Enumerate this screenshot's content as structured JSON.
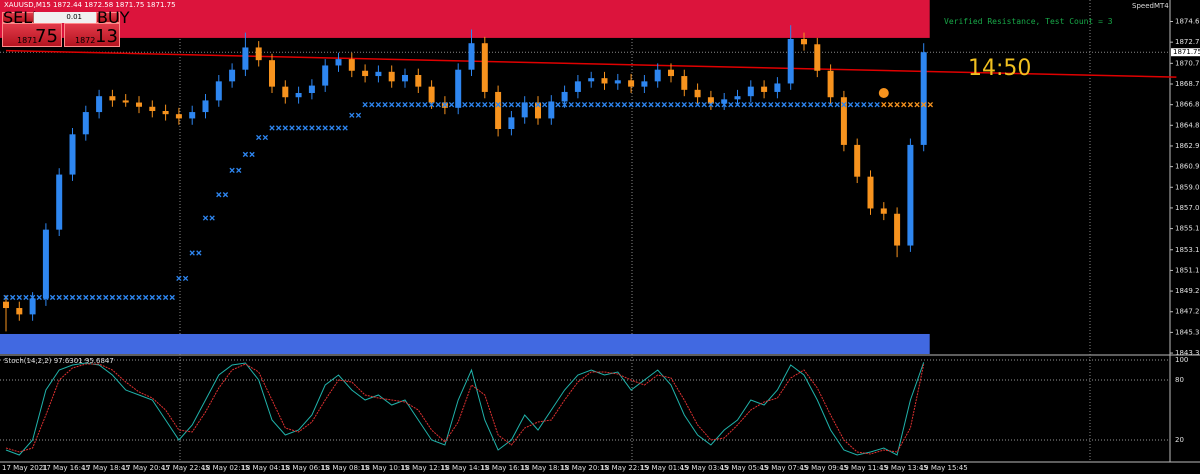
{
  "app": {
    "brand": "SpeedMT4"
  },
  "trade_panel": {
    "symbol_info": "XAUUSD,M15  1872.44 1872.58 1871.75 1871.75",
    "sell_label": "SELL",
    "buy_label": "BUY",
    "lot": "0.01",
    "sell_price_small": "1871",
    "sell_price_big": "75",
    "buy_price_small": "1872",
    "buy_price_big": "13"
  },
  "chart_data": [
    {
      "type": "candlestick",
      "annotations": [
        "Verified Resistance, Test Count = 3",
        "14:50"
      ],
      "categories": [
        "17 May 2021",
        null,
        null,
        "17 May 16:45",
        null,
        null,
        "17 May 18:45",
        null,
        null,
        "17 May 20:45",
        null,
        null,
        "17 May 22:45",
        null,
        null,
        "18 May 02:15",
        null,
        null,
        "18 May 04:15",
        null,
        null,
        "18 May 06:15",
        null,
        null,
        "18 May 08:15",
        null,
        null,
        "18 May 10:15",
        null,
        null,
        "18 May 12:15",
        null,
        null,
        "18 May 14:15",
        null,
        null,
        "18 May 16:15",
        null,
        null,
        "18 May 18:15",
        null,
        null,
        "18 May 20:15",
        null,
        null,
        "18 May 22:15",
        null,
        null,
        "19 May 01:45",
        null,
        null,
        "19 May 03:45",
        null,
        null,
        "19 May 05:45",
        null,
        null,
        "19 May 07:45",
        null,
        null,
        "19 May 09:45",
        null,
        null,
        "19 May 11:45",
        null,
        null,
        "19 May 13:45",
        null,
        null,
        "19 May 15:45"
      ],
      "open": [
        1848.2,
        1847.6,
        1847.0,
        1848.5,
        1855.0,
        1860.2,
        1864.0,
        1866.1,
        1867.6,
        1867.2,
        1867.0,
        1866.6,
        1866.2,
        1865.9,
        1865.5,
        1866.1,
        1867.2,
        1869.0,
        1870.1,
        1872.2,
        1871.0,
        1868.5,
        1867.5,
        1867.9,
        1868.6,
        1870.5,
        1871.1,
        1870.0,
        1869.5,
        1869.9,
        1869.0,
        1869.6,
        1868.5,
        1867.0,
        1866.5,
        1870.1,
        1872.6,
        1868.0,
        1864.5,
        1865.6,
        1867.0,
        1865.5,
        1867.1,
        1868.0,
        1869.0,
        1869.3,
        1868.8,
        1869.1,
        1868.5,
        1869.0,
        1870.1,
        1869.5,
        1868.2,
        1867.5,
        1866.9,
        1867.3,
        1867.6,
        1868.5,
        1868.0,
        1868.8,
        1873.0,
        1872.5,
        1870.0,
        1867.5,
        1863.0,
        1860.0,
        1857.0,
        1856.5,
        1853.5,
        1863.0
      ],
      "high": [
        1848.8,
        1848.2,
        1849.1,
        1855.6,
        1860.8,
        1864.6,
        1866.7,
        1868.2,
        1868.2,
        1867.8,
        1867.6,
        1867.2,
        1866.8,
        1866.5,
        1866.7,
        1867.8,
        1869.6,
        1870.7,
        1873.6,
        1872.8,
        1871.6,
        1869.1,
        1868.5,
        1869.2,
        1871.1,
        1871.7,
        1871.7,
        1870.6,
        1870.5,
        1870.5,
        1870.2,
        1870.2,
        1869.1,
        1867.6,
        1870.7,
        1873.9,
        1873.2,
        1868.6,
        1866.2,
        1867.6,
        1867.6,
        1867.7,
        1868.6,
        1869.6,
        1869.9,
        1869.9,
        1869.7,
        1869.7,
        1869.6,
        1870.7,
        1870.7,
        1870.1,
        1868.8,
        1868.1,
        1867.9,
        1868.2,
        1869.1,
        1869.1,
        1869.4,
        1874.3,
        1873.6,
        1873.1,
        1870.6,
        1868.1,
        1863.6,
        1860.6,
        1857.6,
        1857.1,
        1863.6,
        1872.6
      ],
      "low": [
        1845.4,
        1846.4,
        1846.4,
        1847.8,
        1854.4,
        1859.6,
        1863.4,
        1865.5,
        1866.6,
        1866.6,
        1866.0,
        1865.6,
        1865.3,
        1864.9,
        1864.9,
        1865.5,
        1866.6,
        1868.4,
        1869.5,
        1870.4,
        1867.9,
        1866.9,
        1866.9,
        1867.3,
        1868.0,
        1869.9,
        1869.4,
        1868.9,
        1868.9,
        1868.4,
        1868.4,
        1867.9,
        1866.4,
        1865.9,
        1865.9,
        1869.5,
        1867.4,
        1863.8,
        1863.9,
        1865.0,
        1864.9,
        1864.9,
        1866.5,
        1867.4,
        1868.4,
        1868.2,
        1868.2,
        1867.9,
        1867.9,
        1868.4,
        1868.9,
        1867.6,
        1866.9,
        1866.3,
        1866.3,
        1866.7,
        1867.0,
        1867.4,
        1867.4,
        1868.2,
        1871.9,
        1869.4,
        1866.9,
        1862.4,
        1859.4,
        1856.4,
        1855.9,
        1852.4,
        1852.9,
        1862.4
      ],
      "close": [
        1847.6,
        1847.0,
        1848.5,
        1855.0,
        1860.2,
        1864.0,
        1866.1,
        1867.6,
        1867.2,
        1867.0,
        1866.6,
        1866.2,
        1865.9,
        1865.5,
        1866.1,
        1867.2,
        1869.0,
        1870.1,
        1872.2,
        1871.0,
        1868.5,
        1867.5,
        1867.9,
        1868.6,
        1870.5,
        1871.1,
        1870.0,
        1869.5,
        1869.9,
        1869.0,
        1869.6,
        1868.5,
        1867.0,
        1866.5,
        1870.1,
        1872.6,
        1868.0,
        1864.5,
        1865.6,
        1867.0,
        1865.5,
        1867.1,
        1868.0,
        1869.0,
        1869.3,
        1868.8,
        1869.1,
        1868.5,
        1869.0,
        1870.1,
        1869.5,
        1868.2,
        1867.5,
        1866.9,
        1867.3,
        1867.6,
        1868.5,
        1868.0,
        1868.8,
        1873.0,
        1872.5,
        1870.0,
        1867.5,
        1863.0,
        1860.0,
        1857.0,
        1856.5,
        1853.5,
        1863.0,
        1871.75
      ],
      "up_color": "#2e86f0",
      "down_color": "#f7931e",
      "ylim": [
        1843.26,
        1876.68
      ],
      "yticks": [
        1874.65,
        {
          "value": 1872.7,
          "label": "1872.70"
        },
        {
          "value": 1870.7,
          "label": "1870.70"
        },
        1868.75,
        {
          "value": 1866.8,
          "label": "1866.80"
        },
        1864.85,
        {
          "value": 1862.9,
          "label": "1862.90"
        },
        1860.95,
        {
          "value": 1859.0,
          "label": "1859.00"
        },
        1857.05,
        {
          "value": 1855.1,
          "label": "1855.10"
        },
        {
          "value": 1853.1,
          "label": "1853.10"
        },
        1851.15,
        {
          "value": 1849.2,
          "label": "1849.20"
        },
        1847.25,
        {
          "value": 1845.3,
          "label": "1845.30"
        },
        1843.35
      ],
      "last_price": 1871.75,
      "zones": [
        {
          "from": 1873.1,
          "to": 1876.68,
          "color": "#dc143c"
        },
        {
          "from": 1843.26,
          "to": 1845.15,
          "color": "#4169e1"
        }
      ],
      "trendline": {
        "color": "#e00000",
        "x": [
          0,
          88
        ],
        "values": [
          1871.9,
          1869.4
        ]
      },
      "series": [
        {
          "color": "#2e86f0",
          "values": [
            1848.6,
            1848.6,
            1848.6,
            1848.6,
            1848.6,
            1848.6,
            1848.6,
            1848.6,
            1848.6,
            1848.6,
            1848.6,
            1848.6,
            1848.6,
            1850.4,
            1852.8,
            1856.1,
            1858.3,
            1860.6,
            1862.1,
            1863.7,
            1864.6,
            1864.6,
            1864.6,
            1864.6,
            1864.6,
            1864.6,
            1865.8,
            1866.8,
            1866.8,
            1866.8,
            1866.8,
            1866.8,
            1866.8,
            1866.8,
            1866.8,
            1866.8,
            1866.8,
            1866.8,
            1866.8,
            1866.8,
            1866.8,
            1866.8,
            1866.8,
            1866.8,
            1866.8,
            1866.8,
            1866.8,
            1866.8,
            1866.8,
            1866.8,
            1866.8,
            1866.8,
            1866.8,
            1866.8,
            1866.8,
            1866.8,
            1866.8,
            1866.8,
            1866.8,
            1866.8,
            1866.8,
            1866.8,
            1866.8,
            1866.8,
            1866.8,
            1866.8,
            null,
            null,
            null,
            null
          ]
        },
        {
          "color": "#f7931e",
          "values": [
            null,
            null,
            null,
            null,
            null,
            null,
            null,
            null,
            null,
            null,
            null,
            null,
            null,
            null,
            null,
            null,
            null,
            null,
            null,
            null,
            null,
            null,
            null,
            null,
            null,
            null,
            null,
            null,
            null,
            null,
            null,
            null,
            null,
            null,
            null,
            null,
            null,
            null,
            null,
            null,
            null,
            null,
            null,
            null,
            null,
            null,
            null,
            null,
            null,
            null,
            null,
            null,
            null,
            null,
            null,
            null,
            null,
            null,
            null,
            null,
            null,
            null,
            null,
            null,
            null,
            null,
            1866.8,
            1866.8,
            1866.8,
            1866.8
          ]
        }
      ],
      "signal_dot": {
        "x": 66,
        "value": 1867.9,
        "color": "#f7931e"
      }
    },
    {
      "type": "line",
      "title": "Stoch(14,2,2) 97.6301 95.6847",
      "ylim": [
        0,
        100
      ],
      "yticks": [
        20,
        80,
        100
      ],
      "series": [
        {
          "color": "#20b2aa",
          "values": [
            10,
            5,
            20,
            70,
            90,
            95,
            97,
            95,
            85,
            70,
            65,
            60,
            40,
            20,
            35,
            60,
            85,
            95,
            97,
            80,
            40,
            25,
            30,
            45,
            75,
            85,
            70,
            60,
            65,
            55,
            60,
            40,
            20,
            15,
            60,
            90,
            40,
            10,
            20,
            45,
            30,
            50,
            70,
            85,
            90,
            85,
            88,
            70,
            80,
            90,
            75,
            45,
            25,
            15,
            30,
            40,
            60,
            55,
            70,
            95,
            85,
            60,
            30,
            10,
            5,
            8,
            12,
            5,
            60,
            97.63
          ]
        },
        {
          "color": "#e03030",
          "values": [
            12,
            8,
            12,
            45,
            80,
            92,
            96,
            96,
            90,
            78,
            68,
            62,
            50,
            30,
            28,
            48,
            72,
            90,
            96,
            88,
            60,
            32,
            28,
            38,
            60,
            80,
            78,
            65,
            62,
            60,
            58,
            50,
            30,
            18,
            38,
            75,
            65,
            25,
            15,
            32,
            38,
            40,
            60,
            78,
            88,
            88,
            86,
            80,
            75,
            85,
            82,
            60,
            35,
            20,
            22,
            35,
            50,
            58,
            62,
            82,
            90,
            72,
            45,
            20,
            8,
            6,
            10,
            8,
            32,
            95.68
          ]
        }
      ]
    }
  ]
}
